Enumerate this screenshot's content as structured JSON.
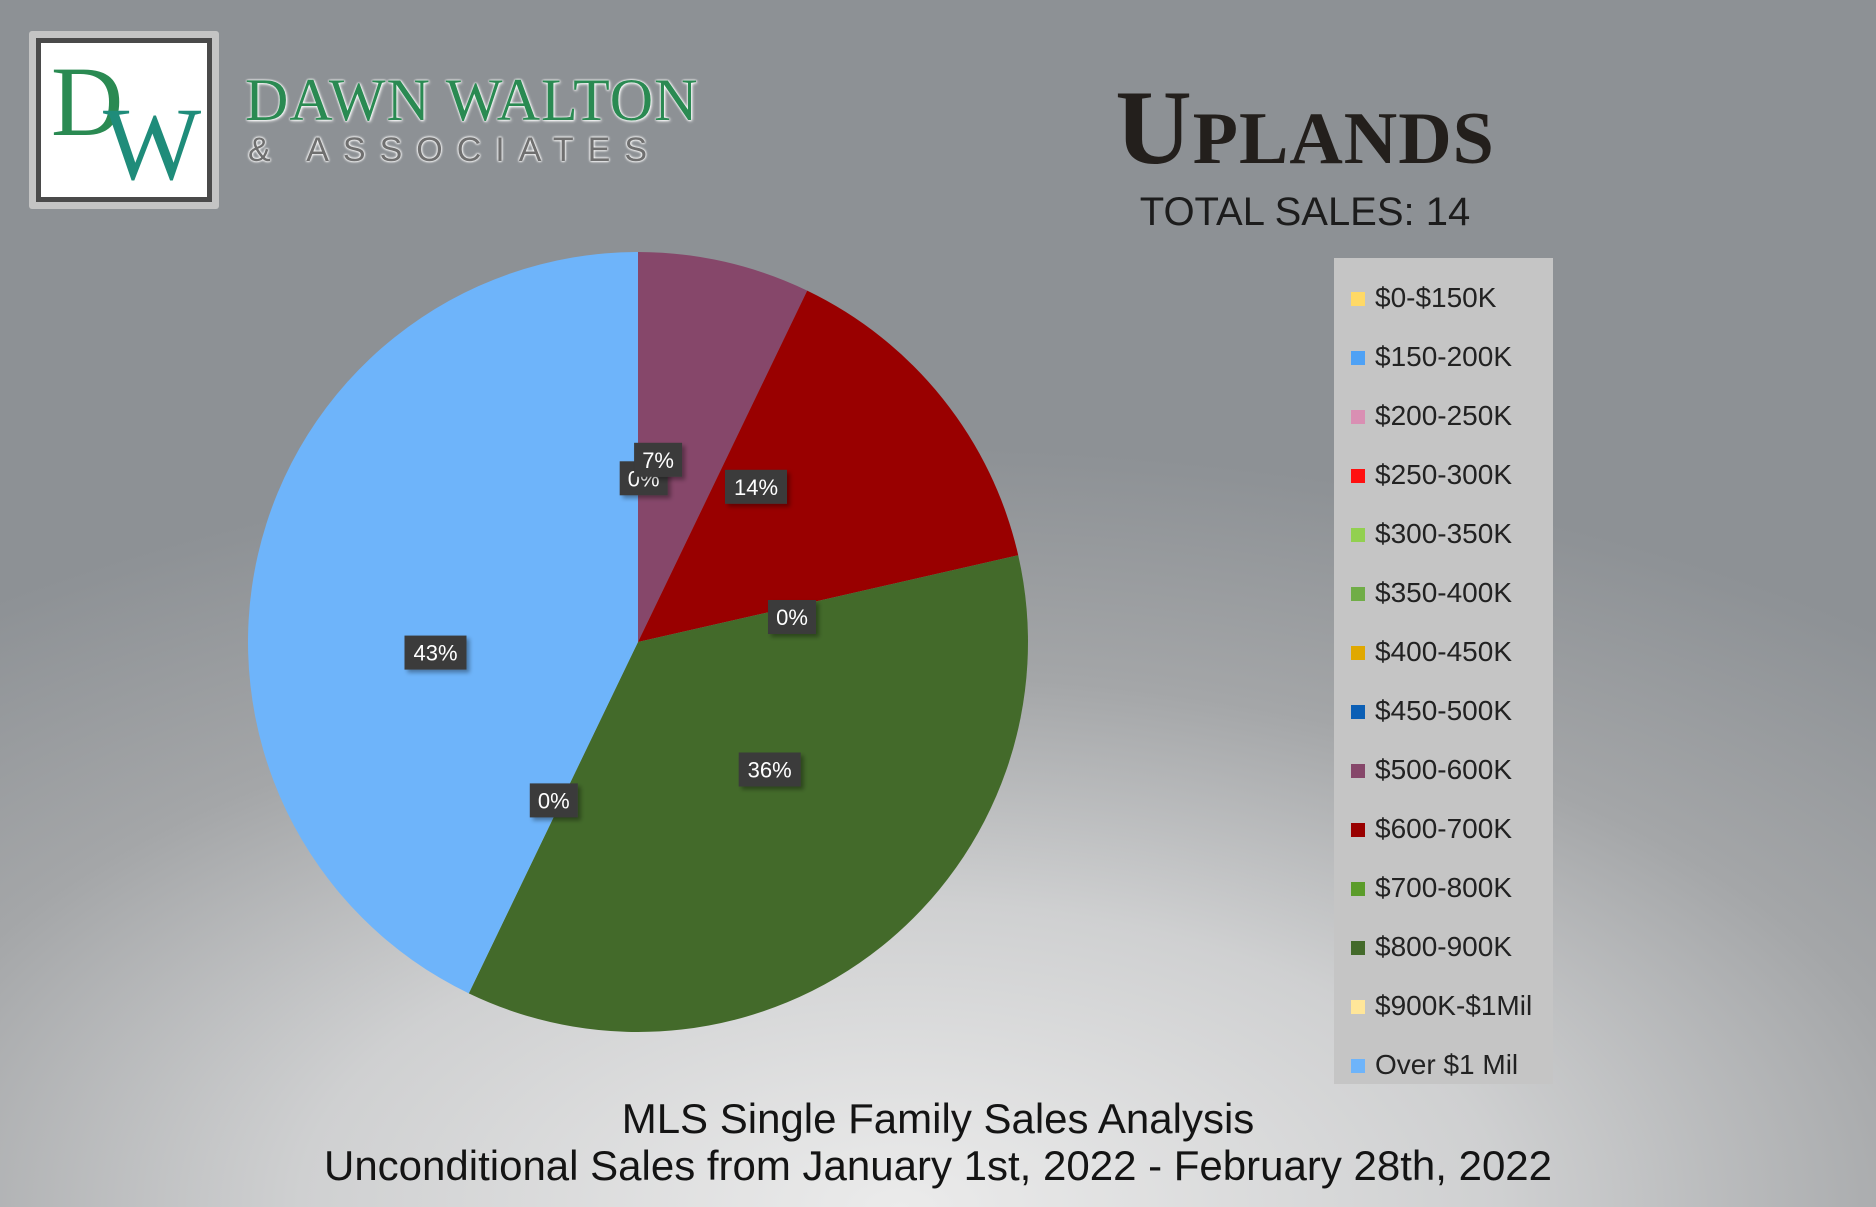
{
  "brand": {
    "logo_letters": "DW",
    "name": "DAWN WALTON",
    "sub": "& ASSOCIATES",
    "colors": {
      "green": "#2a8a52",
      "teal": "#1f8c7a"
    }
  },
  "chart_data": {
    "type": "pie",
    "title": "Uplands",
    "subtitle": "TOTAL SALES: 14",
    "categories": [
      "$0-$150K",
      "$150-200K",
      "$200-250K",
      "$250-300K",
      "$300-350K",
      "$350-400K",
      "$400-450K",
      "$450-500K",
      "$500-600K",
      "$600-700K",
      "$700-800K",
      "$800-900K",
      "$900K-$1Mil",
      "Over $1 Mil"
    ],
    "counts": [
      0,
      0,
      0,
      0,
      0,
      0,
      0,
      0,
      1,
      2,
      0,
      5,
      0,
      6
    ],
    "percent_labels": [
      "0%",
      "0%",
      "0%",
      "0%",
      "0%",
      "0%",
      "0%",
      "0%",
      "7%",
      "14%",
      "0%",
      "36%",
      "0%",
      "43%"
    ],
    "visible_data_labels": [
      "0%",
      "7%",
      "14%",
      "0%",
      "36%",
      "0%",
      "43%"
    ],
    "colors": [
      "#ffd966",
      "#4ea1f5",
      "#d98fb3",
      "#ff1010",
      "#92d050",
      "#70ad47",
      "#e0a800",
      "#0b5fb5",
      "#86476a",
      "#990000",
      "#5b9c2a",
      "#436a2a",
      "#ffe699",
      "#6eb4fa"
    ],
    "start": "12 o'clock",
    "direction": "clockwise",
    "legend": "right"
  },
  "footer": {
    "line1": "MLS Single Family Sales Analysis",
    "line2": "Unconditional Sales from January 1st, 2022 - February 28th, 2022"
  }
}
